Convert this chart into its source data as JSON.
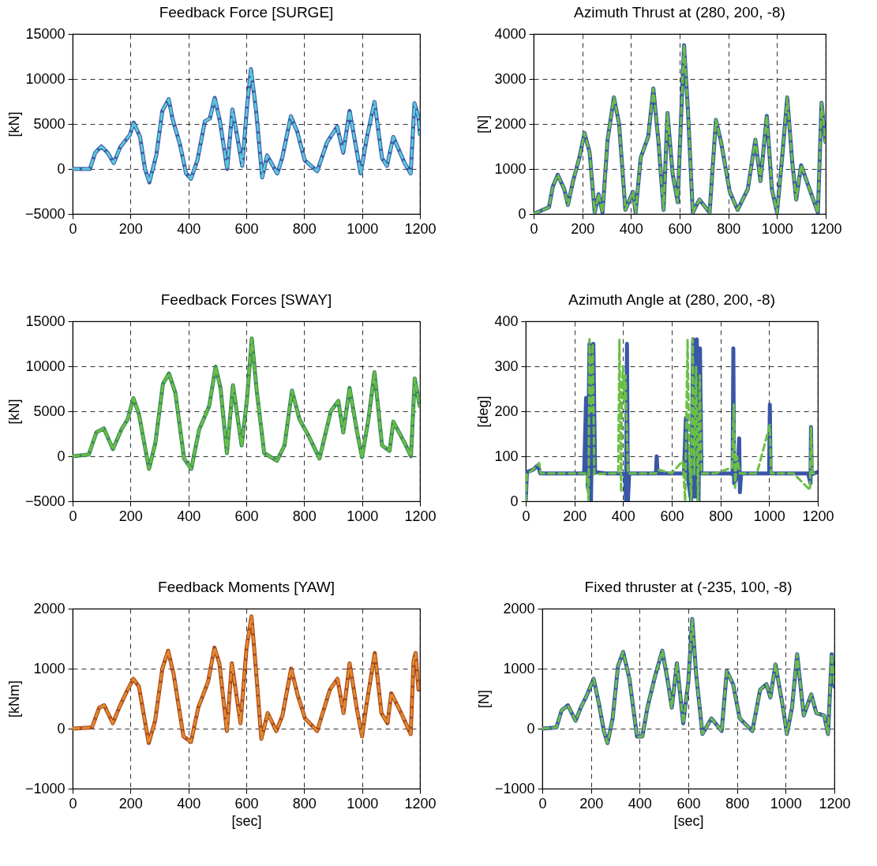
{
  "chart_data": [
    {
      "type": "line",
      "title": "Feedback Force [SURGE]",
      "ylabel": "[kN]",
      "xlim": [
        0,
        1200
      ],
      "xticks": [
        0,
        200,
        400,
        600,
        800,
        1000,
        1200
      ],
      "ylim": [
        -5000,
        15000
      ],
      "yticks": [
        -5000,
        0,
        5000,
        10000,
        15000
      ],
      "grid": true,
      "x": [
        0,
        60,
        78,
        99,
        121,
        142,
        164,
        198,
        211,
        233,
        250,
        265,
        289,
        310,
        332,
        345,
        371,
        392,
        409,
        431,
        457,
        474,
        491,
        509,
        534,
        552,
        569,
        586,
        603,
        616,
        634,
        655,
        672,
        707,
        724,
        754,
        776,
        802,
        845,
        879,
        914,
        935,
        957,
        978,
        995,
        1017,
        1043,
        1069,
        1086,
        1108,
        1147,
        1168,
        1181,
        1194,
        1200
      ],
      "series": [
        {
          "color": "#3a56a8",
          "line_style": "solid",
          "values": [
            0,
            0,
            1800,
            2500,
            1800,
            650,
            2400,
            3800,
            5150,
            3550,
            0,
            -1500,
            1500,
            6450,
            7750,
            5600,
            2700,
            -500,
            -1100,
            950,
            5300,
            5600,
            7900,
            5300,
            0,
            6600,
            3550,
            350,
            7050,
            11100,
            6450,
            -950,
            1500,
            -500,
            1200,
            5850,
            4150,
            950,
            -250,
            2950,
            4700,
            1800,
            6450,
            2650,
            -500,
            3550,
            7450,
            1200,
            350,
            3550,
            650,
            -500,
            7300,
            5850,
            3850
          ]
        },
        {
          "color": "#5bc8d8",
          "line_style": "dashed",
          "values": [
            0,
            0,
            1800,
            2500,
            1800,
            650,
            2400,
            3800,
            5150,
            3550,
            0,
            -1500,
            1500,
            6450,
            7750,
            5600,
            2700,
            -500,
            -1100,
            950,
            5300,
            5600,
            7900,
            5300,
            0,
            6600,
            3550,
            350,
            7050,
            11100,
            6450,
            -950,
            1500,
            -500,
            1200,
            5850,
            4150,
            950,
            -250,
            2950,
            4700,
            1800,
            6450,
            2650,
            -500,
            3550,
            7450,
            1200,
            350,
            3550,
            650,
            -500,
            7300,
            5850,
            3850
          ]
        }
      ]
    },
    {
      "type": "line",
      "title": "Azimuth Thrust at (280, 200, -8)",
      "ylabel": "[N]",
      "xlim": [
        0,
        1200
      ],
      "xticks": [
        0,
        200,
        400,
        600,
        800,
        1000,
        1200
      ],
      "ylim": [
        0,
        4000
      ],
      "yticks": [
        0,
        1000,
        2000,
        3000,
        4000
      ],
      "grid": true,
      "x": [
        0,
        63,
        79,
        99,
        126,
        141,
        162,
        188,
        209,
        230,
        251,
        267,
        283,
        304,
        330,
        351,
        377,
        408,
        419,
        440,
        471,
        492,
        513,
        534,
        550,
        571,
        592,
        607,
        618,
        634,
        654,
        681,
        723,
        749,
        770,
        806,
        838,
        880,
        911,
        932,
        958,
        979,
        1000,
        1021,
        1042,
        1063,
        1079,
        1099,
        1141,
        1168,
        1183,
        1199
      ],
      "series": [
        {
          "color": "#3a56a8",
          "line_style": "solid",
          "values": [
            0,
            150,
            610,
            870,
            550,
            200,
            730,
            1250,
            1800,
            1370,
            30,
            440,
            30,
            1650,
            2590,
            2010,
            90,
            490,
            30,
            1250,
            1720,
            2790,
            1600,
            90,
            2240,
            900,
            260,
            2300,
            3750,
            2300,
            30,
            320,
            30,
            2090,
            1600,
            490,
            90,
            550,
            1650,
            730,
            2180,
            550,
            30,
            1250,
            2590,
            1130,
            320,
            1080,
            440,
            30,
            2470,
            1600
          ]
        },
        {
          "color": "#6abf45",
          "line_style": "dashed",
          "values": [
            0,
            150,
            610,
            870,
            550,
            200,
            730,
            1250,
            1800,
            1370,
            30,
            440,
            30,
            1650,
            2590,
            2010,
            90,
            490,
            30,
            1250,
            1720,
            2790,
            1600,
            90,
            2240,
            900,
            260,
            2300,
            3750,
            2300,
            30,
            320,
            30,
            2090,
            1600,
            490,
            90,
            550,
            1650,
            730,
            2180,
            550,
            30,
            1250,
            2590,
            1130,
            320,
            1080,
            440,
            30,
            2470,
            1600
          ]
        }
      ]
    },
    {
      "type": "line",
      "title": "Feedback Forces [SWAY]",
      "ylabel": "[kN]",
      "xlim": [
        0,
        1200
      ],
      "xticks": [
        0,
        200,
        400,
        600,
        800,
        1000,
        1200
      ],
      "ylim": [
        -5000,
        15000
      ],
      "yticks": [
        -5000,
        0,
        5000,
        10000,
        15000
      ],
      "grid": true,
      "x": [
        0,
        56,
        82,
        108,
        139,
        169,
        190,
        210,
        229,
        264,
        286,
        312,
        333,
        355,
        385,
        410,
        437,
        472,
        494,
        511,
        533,
        554,
        584,
        602,
        619,
        636,
        662,
        706,
        732,
        758,
        784,
        818,
        853,
        892,
        918,
        935,
        957,
        983,
        1000,
        1022,
        1043,
        1069,
        1095,
        1108,
        1147,
        1169,
        1182,
        1199
      ],
      "series": [
        {
          "color": "#3a8a5a",
          "line_style": "solid",
          "values": [
            0,
            200,
            2650,
            3100,
            800,
            3000,
            4100,
            6450,
            4700,
            -1400,
            1500,
            8050,
            9200,
            7050,
            -250,
            -1400,
            2950,
            5600,
            9950,
            7600,
            350,
            7900,
            1200,
            6150,
            13100,
            7300,
            350,
            -500,
            1200,
            7300,
            4100,
            2100,
            -250,
            5000,
            6150,
            2650,
            7600,
            2650,
            -100,
            4100,
            9350,
            1200,
            600,
            3850,
            1500,
            0,
            8650,
            5600
          ]
        },
        {
          "color": "#6abf45",
          "line_style": "dashed",
          "values": [
            0,
            200,
            2650,
            3100,
            800,
            3000,
            4100,
            6450,
            4700,
            -1400,
            1500,
            8050,
            9200,
            7050,
            -250,
            -1400,
            2950,
            5600,
            9950,
            7600,
            350,
            7900,
            1200,
            6150,
            13100,
            7300,
            350,
            -500,
            1200,
            7300,
            4100,
            2100,
            -250,
            5000,
            6150,
            2650,
            7600,
            2650,
            -100,
            4100,
            9350,
            1200,
            600,
            3850,
            1500,
            0,
            8650,
            5600
          ]
        }
      ]
    },
    {
      "type": "line",
      "title": "Azimuth Angle at (280, 200, -8)",
      "ylabel": "[deg]",
      "xlim": [
        0,
        1200
      ],
      "xticks": [
        0,
        200,
        400,
        600,
        800,
        1000,
        1200
      ],
      "ylim": [
        0,
        400
      ],
      "yticks": [
        0,
        100,
        200,
        300,
        400
      ],
      "grid": true,
      "series": [
        {
          "color": "#3a56a8",
          "line_style": "solid",
          "x": [
            0,
            5,
            30,
            50,
            60,
            120,
            200,
            240,
            248,
            255,
            262,
            268,
            278,
            285,
            330,
            380,
            408,
            412,
            416,
            420,
            425,
            480,
            535,
            538,
            542,
            600,
            650,
            658,
            664,
            680,
            688,
            695,
            703,
            710,
            716,
            722,
            780,
            840,
            850,
            853,
            856,
            870,
            877,
            880,
            885,
            950,
            1000,
            1003,
            1006,
            1050,
            1100,
            1160,
            1170,
            1172,
            1175,
            1200
          ],
          "values": [
            0,
            65,
            70,
            80,
            62,
            62,
            62,
            62,
            230,
            30,
            350,
            0,
            350,
            65,
            62,
            62,
            60,
            0,
            350,
            0,
            62,
            62,
            62,
            100,
            62,
            62,
            62,
            185,
            60,
            0,
            360,
            10,
            360,
            0,
            340,
            62,
            62,
            62,
            60,
            340,
            40,
            55,
            140,
            20,
            62,
            62,
            62,
            215,
            62,
            62,
            62,
            62,
            40,
            165,
            60,
            65
          ]
        },
        {
          "color": "#6abf45",
          "line_style": "dashed",
          "x": [
            0,
            5,
            30,
            55,
            62,
            200,
            250,
            258,
            262,
            270,
            275,
            282,
            340,
            380,
            385,
            392,
            395,
            400,
            405,
            410,
            420,
            500,
            535,
            548,
            600,
            645,
            655,
            665,
            672,
            680,
            686,
            693,
            700,
            708,
            715,
            722,
            780,
            848,
            855,
            860,
            868,
            880,
            950,
            1003,
            1008,
            1100,
            1168,
            1172,
            1178,
            1200
          ],
          "values": [
            0,
            60,
            70,
            85,
            62,
            62,
            62,
            0,
            360,
            200,
            350,
            60,
            62,
            62,
            360,
            20,
            250,
            300,
            220,
            280,
            62,
            62,
            62,
            70,
            62,
            90,
            0,
            360,
            100,
            0,
            360,
            60,
            300,
            0,
            280,
            62,
            62,
            75,
            215,
            30,
            100,
            62,
            62,
            170,
            62,
            62,
            25,
            165,
            62,
            62
          ]
        }
      ]
    },
    {
      "type": "line",
      "title": "Feedback Moments [YAW]",
      "ylabel": "[kNm]",
      "xlabel": "[sec]",
      "xlim": [
        0,
        1200
      ],
      "xticks": [
        0,
        200,
        400,
        600,
        800,
        1000,
        1200
      ],
      "ylim": [
        -1000,
        2000
      ],
      "yticks": [
        -1000,
        0,
        1000,
        2000
      ],
      "grid": true,
      "x": [
        0,
        67,
        92,
        109,
        139,
        161,
        186,
        210,
        229,
        263,
        285,
        310,
        330,
        349,
        383,
        409,
        434,
        468,
        490,
        507,
        533,
        550,
        580,
        601,
        618,
        631,
        652,
        674,
        704,
        725,
        755,
        777,
        803,
        845,
        889,
        915,
        936,
        957,
        983,
        1000,
        1015,
        1044,
        1067,
        1088,
        1101,
        1135,
        1168,
        1178,
        1185,
        1195
      ],
      "series": [
        {
          "color": "#a8461e",
          "line_style": "solid",
          "values": [
            0,
            20,
            350,
            390,
            90,
            350,
            610,
            830,
            700,
            -240,
            130,
            1000,
            1300,
            910,
            -130,
            -220,
            350,
            780,
            1350,
            1090,
            -40,
            1090,
            90,
            1350,
            1870,
            1130,
            -170,
            260,
            -40,
            220,
            1000,
            570,
            170,
            -40,
            650,
            830,
            260,
            1090,
            300,
            -130,
            390,
            1260,
            260,
            90,
            590,
            260,
            -90,
            1130,
            1260,
            650
          ]
        },
        {
          "color": "#e08a2c",
          "line_style": "dashed",
          "values": [
            0,
            20,
            350,
            390,
            90,
            350,
            610,
            830,
            700,
            -240,
            130,
            1000,
            1300,
            910,
            -130,
            -220,
            350,
            780,
            1350,
            1090,
            -40,
            1090,
            90,
            1350,
            1870,
            1130,
            -170,
            260,
            -40,
            220,
            1000,
            570,
            170,
            -40,
            650,
            830,
            260,
            1090,
            300,
            -130,
            390,
            1260,
            260,
            90,
            590,
            260,
            -90,
            1130,
            1260,
            650
          ]
        }
      ]
    },
    {
      "type": "line",
      "title": "Fixed thruster at (-235, 100, -8)",
      "ylabel": "[N]",
      "xlabel": "[sec]",
      "xlim": [
        0,
        1200
      ],
      "xticks": [
        0,
        200,
        400,
        600,
        800,
        1000,
        1200
      ],
      "ylim": [
        -1000,
        2000
      ],
      "yticks": [
        -1000,
        0,
        1000,
        2000
      ],
      "grid": true,
      "x": [
        0,
        58,
        79,
        105,
        137,
        158,
        179,
        211,
        232,
        253,
        268,
        289,
        311,
        332,
        358,
        389,
        411,
        432,
        463,
        493,
        516,
        532,
        553,
        579,
        600,
        616,
        632,
        658,
        695,
        737,
        758,
        784,
        811,
        863,
        895,
        921,
        937,
        958,
        989,
        1005,
        1026,
        1047,
        1074,
        1105,
        1126,
        1158,
        1174,
        1189,
        1200
      ],
      "series": [
        {
          "color": "#3a56a8",
          "line_style": "solid",
          "values": [
            0,
            20,
            300,
            390,
            130,
            350,
            520,
            830,
            430,
            -40,
            -240,
            170,
            1040,
            1280,
            830,
            -130,
            -130,
            350,
            870,
            1300,
            780,
            350,
            1090,
            90,
            780,
            1830,
            910,
            -90,
            170,
            -40,
            960,
            740,
            170,
            -40,
            650,
            740,
            520,
            1070,
            350,
            -90,
            350,
            1240,
            220,
            570,
            260,
            220,
            -90,
            1240,
            700
          ]
        },
        {
          "color": "#6abf45",
          "line_style": "dashed",
          "values": [
            0,
            20,
            300,
            390,
            130,
            350,
            520,
            830,
            430,
            -40,
            -240,
            170,
            1040,
            1280,
            830,
            -130,
            -130,
            350,
            870,
            1300,
            780,
            350,
            1090,
            90,
            780,
            1830,
            910,
            -90,
            170,
            -40,
            960,
            740,
            170,
            -40,
            650,
            740,
            520,
            1070,
            350,
            -90,
            350,
            1240,
            220,
            570,
            260,
            220,
            -90,
            1240,
            700
          ]
        }
      ]
    }
  ]
}
